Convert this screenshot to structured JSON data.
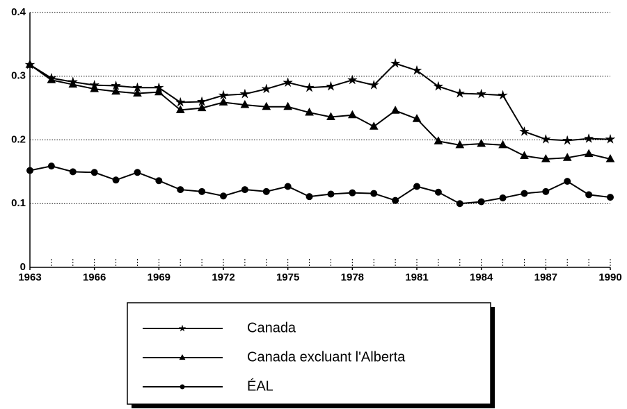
{
  "chart_data": {
    "type": "line",
    "x": [
      1963,
      1964,
      1965,
      1966,
      1967,
      1968,
      1969,
      1970,
      1971,
      1972,
      1973,
      1974,
      1975,
      1976,
      1977,
      1978,
      1979,
      1980,
      1981,
      1982,
      1983,
      1984,
      1985,
      1986,
      1987,
      1988,
      1989,
      1990
    ],
    "series": [
      {
        "name": "Canada",
        "color": "#000000",
        "marker": "star",
        "values": [
          0.318,
          0.297,
          0.291,
          0.286,
          0.285,
          0.282,
          0.282,
          0.259,
          0.26,
          0.27,
          0.272,
          0.28,
          0.29,
          0.282,
          0.284,
          0.294,
          0.286,
          0.32,
          0.309,
          0.284,
          0.273,
          0.272,
          0.27,
          0.213,
          0.201,
          0.199,
          0.202,
          0.201
        ]
      },
      {
        "name": "Canada excluant l'Alberta",
        "color": "#000000",
        "marker": "triangle",
        "values": [
          0.318,
          0.294,
          0.287,
          0.28,
          0.276,
          0.273,
          0.275,
          0.247,
          0.25,
          0.259,
          0.255,
          0.252,
          0.252,
          0.243,
          0.236,
          0.239,
          0.221,
          0.246,
          0.233,
          0.198,
          0.192,
          0.194,
          0.192,
          0.175,
          0.17,
          0.172,
          0.178,
          0.17
        ]
      },
      {
        "name": "ÉAL",
        "color": "#000000",
        "marker": "circle",
        "values": [
          0.152,
          0.159,
          0.15,
          0.149,
          0.137,
          0.149,
          0.136,
          0.122,
          0.119,
          0.112,
          0.122,
          0.119,
          0.127,
          0.111,
          0.115,
          0.117,
          0.116,
          0.105,
          0.127,
          0.118,
          0.1,
          0.103,
          0.109,
          0.116,
          0.119,
          0.135,
          0.114,
          0.11
        ]
      }
    ],
    "xlim": [
      1963,
      1990
    ],
    "xticks": [
      1963,
      1966,
      1969,
      1972,
      1975,
      1978,
      1981,
      1984,
      1987,
      1990
    ],
    "ylim": [
      0,
      0.4
    ],
    "yticks": [
      0,
      0.1,
      0.2,
      0.3,
      0.4
    ],
    "grid": true
  }
}
